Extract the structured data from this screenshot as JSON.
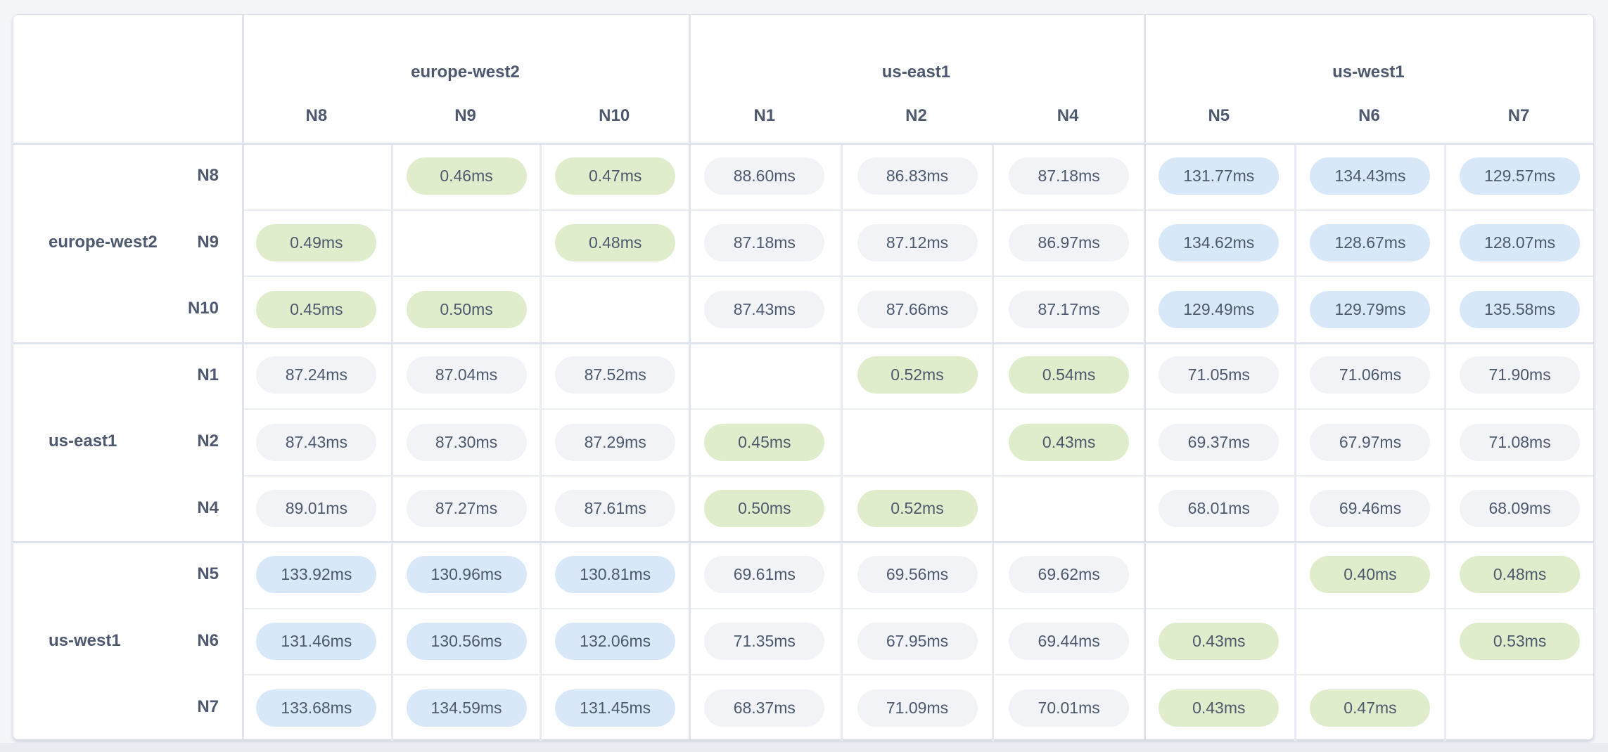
{
  "matrix": {
    "unit": "ms",
    "colors": {
      "low": "#dfedcc",
      "mid": "#f1f3f7",
      "high": "#d8e8f8"
    },
    "groups": [
      {
        "region": "europe-west2",
        "nodes": [
          "N8",
          "N9",
          "N10"
        ]
      },
      {
        "region": "us-east1",
        "nodes": [
          "N1",
          "N2",
          "N4"
        ]
      },
      {
        "region": "us-west1",
        "nodes": [
          "N5",
          "N6",
          "N7"
        ]
      }
    ],
    "rows": [
      {
        "region": "europe-west2",
        "node": "N8",
        "cells": [
          null,
          {
            "value": "0.46ms",
            "level": "low"
          },
          {
            "value": "0.47ms",
            "level": "low"
          },
          {
            "value": "88.60ms",
            "level": "mid"
          },
          {
            "value": "86.83ms",
            "level": "mid"
          },
          {
            "value": "87.18ms",
            "level": "mid"
          },
          {
            "value": "131.77ms",
            "level": "high"
          },
          {
            "value": "134.43ms",
            "level": "high"
          },
          {
            "value": "129.57ms",
            "level": "high"
          }
        ]
      },
      {
        "region": "europe-west2",
        "node": "N9",
        "cells": [
          {
            "value": "0.49ms",
            "level": "low"
          },
          null,
          {
            "value": "0.48ms",
            "level": "low"
          },
          {
            "value": "87.18ms",
            "level": "mid"
          },
          {
            "value": "87.12ms",
            "level": "mid"
          },
          {
            "value": "86.97ms",
            "level": "mid"
          },
          {
            "value": "134.62ms",
            "level": "high"
          },
          {
            "value": "128.67ms",
            "level": "high"
          },
          {
            "value": "128.07ms",
            "level": "high"
          }
        ]
      },
      {
        "region": "europe-west2",
        "node": "N10",
        "cells": [
          {
            "value": "0.45ms",
            "level": "low"
          },
          {
            "value": "0.50ms",
            "level": "low"
          },
          null,
          {
            "value": "87.43ms",
            "level": "mid"
          },
          {
            "value": "87.66ms",
            "level": "mid"
          },
          {
            "value": "87.17ms",
            "level": "mid"
          },
          {
            "value": "129.49ms",
            "level": "high"
          },
          {
            "value": "129.79ms",
            "level": "high"
          },
          {
            "value": "135.58ms",
            "level": "high"
          }
        ]
      },
      {
        "region": "us-east1",
        "node": "N1",
        "cells": [
          {
            "value": "87.24ms",
            "level": "mid"
          },
          {
            "value": "87.04ms",
            "level": "mid"
          },
          {
            "value": "87.52ms",
            "level": "mid"
          },
          null,
          {
            "value": "0.52ms",
            "level": "low"
          },
          {
            "value": "0.54ms",
            "level": "low"
          },
          {
            "value": "71.05ms",
            "level": "mid"
          },
          {
            "value": "71.06ms",
            "level": "mid"
          },
          {
            "value": "71.90ms",
            "level": "mid"
          }
        ]
      },
      {
        "region": "us-east1",
        "node": "N2",
        "cells": [
          {
            "value": "87.43ms",
            "level": "mid"
          },
          {
            "value": "87.30ms",
            "level": "mid"
          },
          {
            "value": "87.29ms",
            "level": "mid"
          },
          {
            "value": "0.45ms",
            "level": "low"
          },
          null,
          {
            "value": "0.43ms",
            "level": "low"
          },
          {
            "value": "69.37ms",
            "level": "mid"
          },
          {
            "value": "67.97ms",
            "level": "mid"
          },
          {
            "value": "71.08ms",
            "level": "mid"
          }
        ]
      },
      {
        "region": "us-east1",
        "node": "N4",
        "cells": [
          {
            "value": "89.01ms",
            "level": "mid"
          },
          {
            "value": "87.27ms",
            "level": "mid"
          },
          {
            "value": "87.61ms",
            "level": "mid"
          },
          {
            "value": "0.50ms",
            "level": "low"
          },
          {
            "value": "0.52ms",
            "level": "low"
          },
          null,
          {
            "value": "68.01ms",
            "level": "mid"
          },
          {
            "value": "69.46ms",
            "level": "mid"
          },
          {
            "value": "68.09ms",
            "level": "mid"
          }
        ]
      },
      {
        "region": "us-west1",
        "node": "N5",
        "cells": [
          {
            "value": "133.92ms",
            "level": "high"
          },
          {
            "value": "130.96ms",
            "level": "high"
          },
          {
            "value": "130.81ms",
            "level": "high"
          },
          {
            "value": "69.61ms",
            "level": "mid"
          },
          {
            "value": "69.56ms",
            "level": "mid"
          },
          {
            "value": "69.62ms",
            "level": "mid"
          },
          null,
          {
            "value": "0.40ms",
            "level": "low"
          },
          {
            "value": "0.48ms",
            "level": "low"
          }
        ]
      },
      {
        "region": "us-west1",
        "node": "N6",
        "cells": [
          {
            "value": "131.46ms",
            "level": "high"
          },
          {
            "value": "130.56ms",
            "level": "high"
          },
          {
            "value": "132.06ms",
            "level": "high"
          },
          {
            "value": "71.35ms",
            "level": "mid"
          },
          {
            "value": "67.95ms",
            "level": "mid"
          },
          {
            "value": "69.44ms",
            "level": "mid"
          },
          {
            "value": "0.43ms",
            "level": "low"
          },
          null,
          {
            "value": "0.53ms",
            "level": "low"
          }
        ]
      },
      {
        "region": "us-west1",
        "node": "N7",
        "cells": [
          {
            "value": "133.68ms",
            "level": "high"
          },
          {
            "value": "134.59ms",
            "level": "high"
          },
          {
            "value": "131.45ms",
            "level": "high"
          },
          {
            "value": "68.37ms",
            "level": "mid"
          },
          {
            "value": "71.09ms",
            "level": "mid"
          },
          {
            "value": "70.01ms",
            "level": "mid"
          },
          {
            "value": "0.43ms",
            "level": "low"
          },
          {
            "value": "0.47ms",
            "level": "low"
          },
          null
        ]
      }
    ]
  }
}
